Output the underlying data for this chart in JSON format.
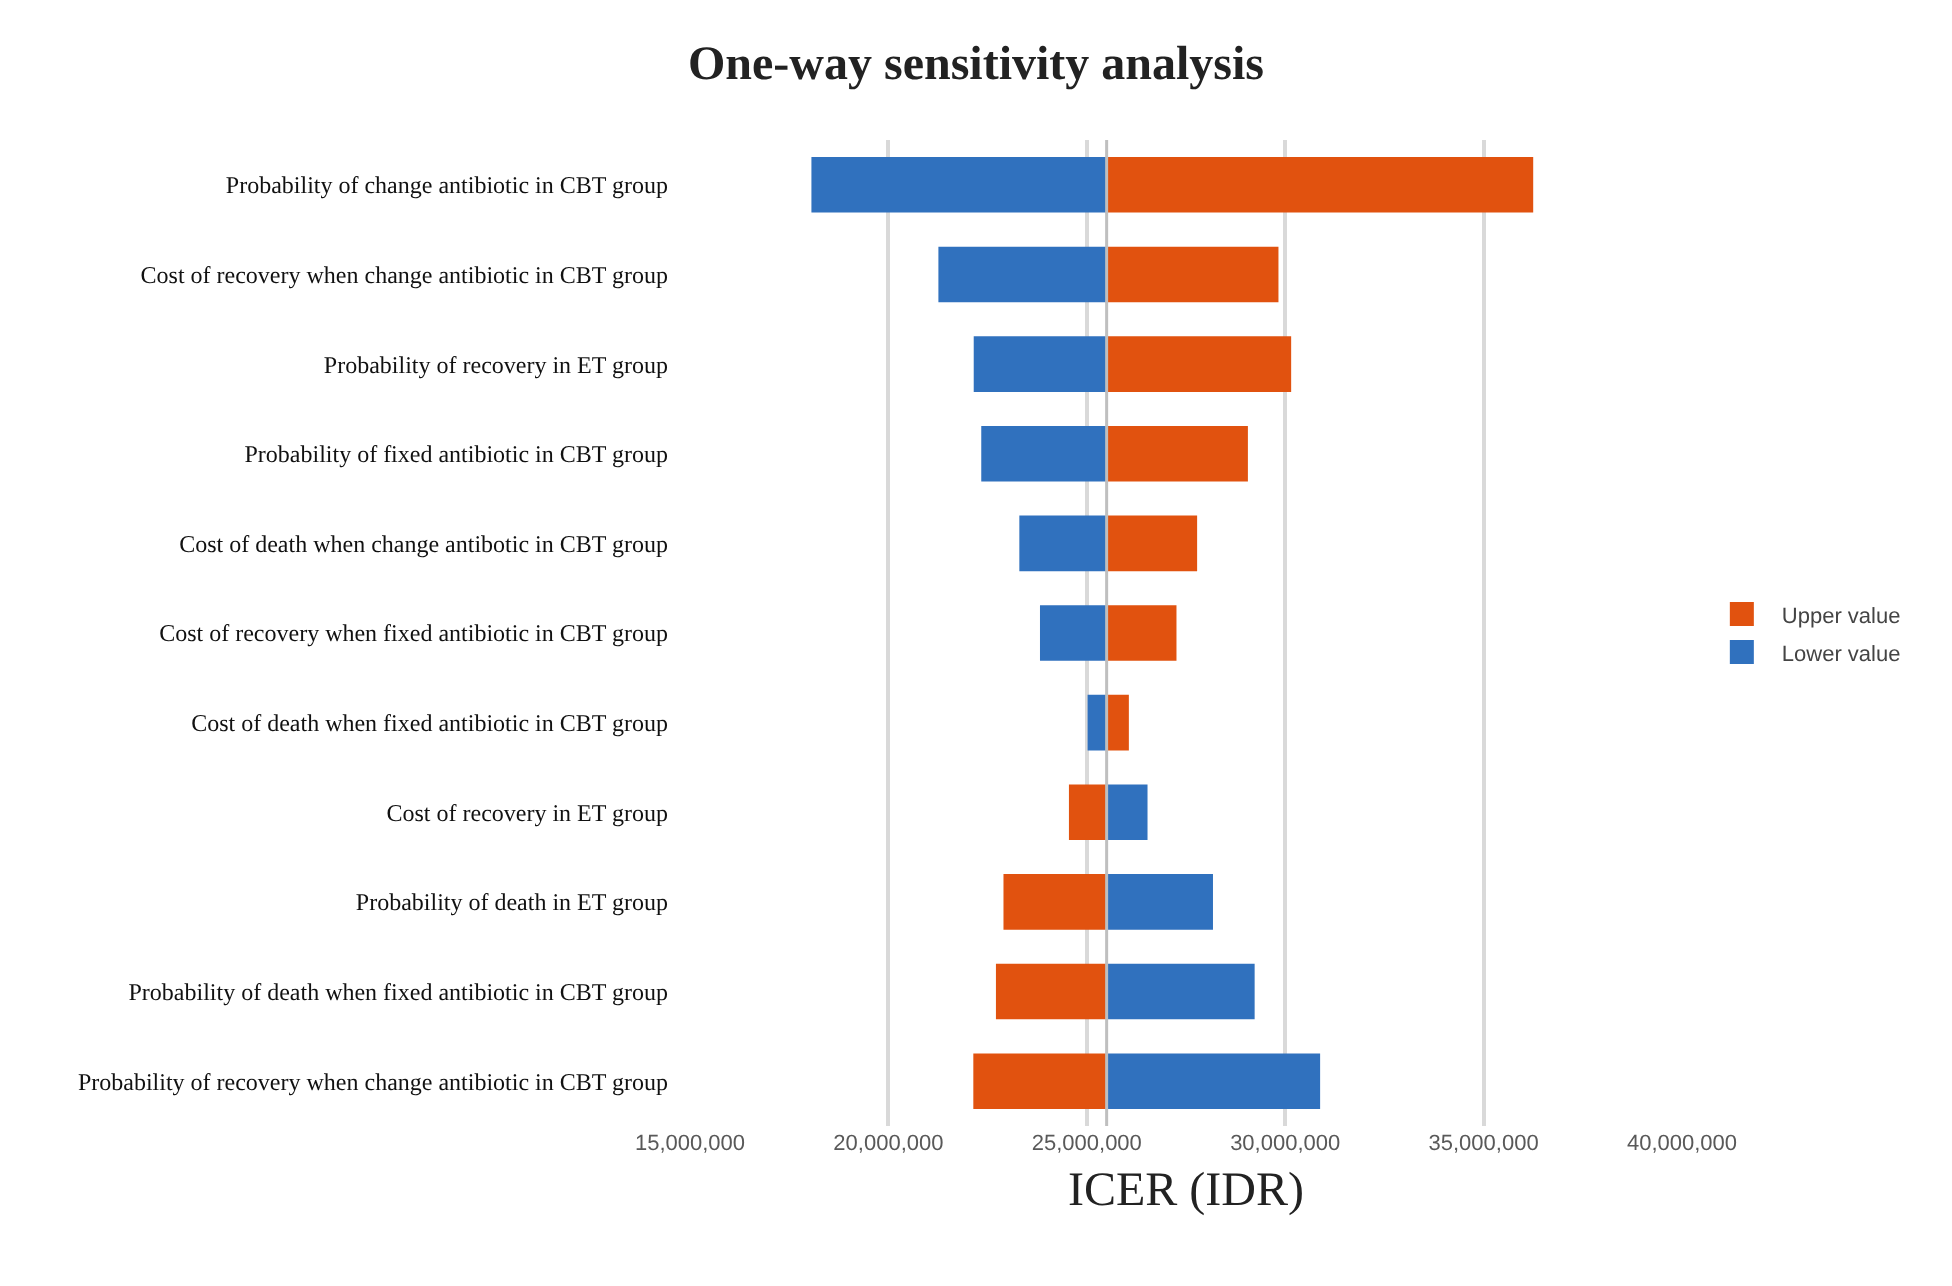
{
  "chart_data": {
    "type": "bar",
    "orientation": "horizontal",
    "title": "One-way sensitivity analysis",
    "xlabel": "ICER (IDR)",
    "categories": [
      "Probability of change antibiotic in CBT group",
      "Cost of recovery when change antibiotic in CBT group",
      "Probability of recovery in ET group",
      "Probability of fixed antibiotic in CBT group",
      "Cost of death when change antibotic in CBT group",
      "Cost of recovery when fixed antibiotic in CBT group",
      "Cost of death when fixed antibiotic in CBT group",
      "Cost of recovery in ET group",
      "Probability of death in ET group",
      "Probability of death when fixed antibiotic in CBT group",
      "Probability of recovery when change antibiotic in CBT group"
    ],
    "series": [
      {
        "name": "Upper value",
        "color": "#e1520f",
        "base": [
          25500000,
          25500000,
          25500000,
          25500000,
          25500000,
          25500000,
          25500000,
          25500000,
          25500000,
          25500000,
          25500000
        ],
        "values": [
          10750000,
          4330000,
          4650000,
          3560000,
          2280000,
          1760000,
          560000,
          -950000,
          -2600000,
          -2790000,
          -3360000
        ]
      },
      {
        "name": "Lower value",
        "color": "#3071be",
        "base": [
          25500000,
          25500000,
          25500000,
          25500000,
          25500000,
          25500000,
          25500000,
          25500000,
          25500000,
          25500000,
          25500000
        ],
        "values": [
          -7440000,
          -4240000,
          -3350000,
          -3160000,
          -2200000,
          -1680000,
          -480000,
          1030000,
          2680000,
          3730000,
          5380000
        ]
      }
    ],
    "xlim": [
      15000000,
      40000000
    ],
    "xticks": [
      {
        "value": 15000000,
        "label": "15,000,000"
      },
      {
        "value": 20000000,
        "label": "20,000,000"
      },
      {
        "value": 25000000,
        "label": "25,000,000"
      },
      {
        "value": 30000000,
        "label": "30,000,000"
      },
      {
        "value": 35000000,
        "label": "35,000,000"
      },
      {
        "value": 40000000,
        "label": "40,000,000"
      }
    ],
    "ref_lines": [
      {
        "axis": "x",
        "value": 25500000,
        "color": "#bfbfbf"
      }
    ],
    "grid": "x",
    "legend": "right"
  }
}
